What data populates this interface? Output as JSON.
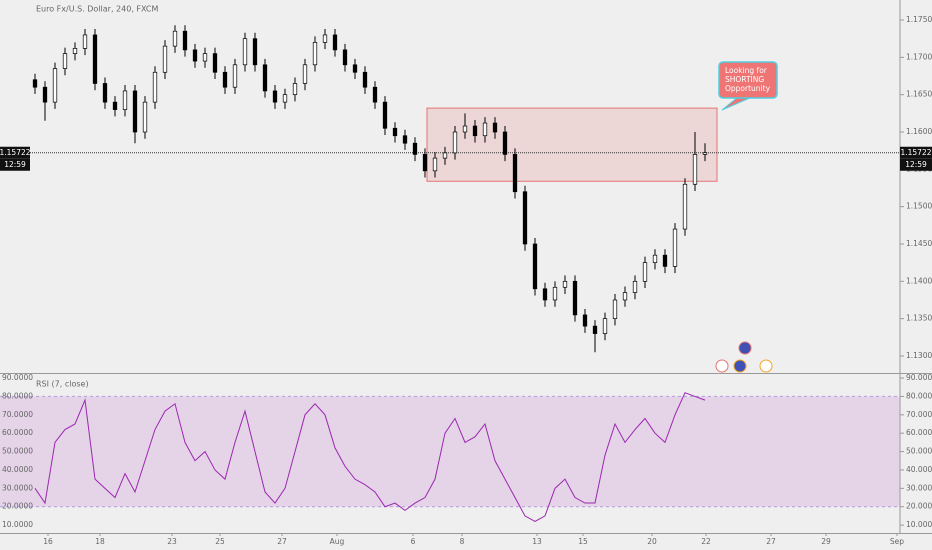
{
  "chart_data": {
    "type": "candlestick",
    "title": "Euro Fx/U.S. Dollar, 240, FXCM",
    "open": [
      1.167,
      1.166,
      1.164,
      1.1685,
      1.1705,
      1.1712,
      1.173,
      1.1665,
      1.164,
      1.163,
      1.1655,
      1.16,
      1.164,
      1.168,
      1.1715,
      1.1735,
      1.171,
      1.1695,
      1.1705,
      1.168,
      1.166,
      1.169,
      1.1725,
      1.169,
      1.1655,
      1.164,
      1.165,
      1.1665,
      1.169,
      1.172,
      1.173,
      1.171,
      1.169,
      1.168,
      1.166,
      1.164,
      1.1605,
      1.1595,
      1.1585,
      1.157,
      1.1548,
      1.1565,
      1.1572,
      1.16,
      1.1608,
      1.1595,
      1.1612,
      1.16,
      1.157,
      1.152,
      1.145,
      1.139,
      1.1375,
      1.1392,
      1.14,
      1.1355,
      1.134,
      1.133,
      1.135,
      1.1375,
      1.1385,
      1.14,
      1.1425,
      1.1435,
      1.142,
      1.147,
      1.153,
      1.157
    ],
    "high": [
      1.1678,
      1.1668,
      1.1693,
      1.1713,
      1.172,
      1.1738,
      1.1738,
      1.1673,
      1.1648,
      1.1663,
      1.1663,
      1.1648,
      1.1688,
      1.1723,
      1.1743,
      1.1743,
      1.1718,
      1.1713,
      1.1713,
      1.1688,
      1.1698,
      1.1733,
      1.1733,
      1.1698,
      1.1663,
      1.1658,
      1.1673,
      1.1698,
      1.1728,
      1.1738,
      1.1738,
      1.1718,
      1.1698,
      1.1688,
      1.1668,
      1.1648,
      1.1613,
      1.1603,
      1.1593,
      1.1578,
      1.1573,
      1.158,
      1.1608,
      1.1625,
      1.1616,
      1.162,
      1.162,
      1.1608,
      1.1578,
      1.1528,
      1.1458,
      1.1398,
      1.14,
      1.1408,
      1.1408,
      1.1363,
      1.1348,
      1.1358,
      1.1383,
      1.1393,
      1.1408,
      1.1433,
      1.1443,
      1.1443,
      1.1478,
      1.1538,
      1.16,
      1.1585
    ],
    "low": [
      1.1651,
      1.1615,
      1.1631,
      1.1676,
      1.1696,
      1.1703,
      1.1656,
      1.1631,
      1.1621,
      1.1621,
      1.1585,
      1.1591,
      1.1631,
      1.1671,
      1.1706,
      1.1701,
      1.1686,
      1.1686,
      1.1671,
      1.1651,
      1.1651,
      1.1681,
      1.1681,
      1.1646,
      1.1631,
      1.1631,
      1.1641,
      1.1656,
      1.1681,
      1.1711,
      1.1701,
      1.1681,
      1.1671,
      1.1651,
      1.1631,
      1.1596,
      1.1586,
      1.1576,
      1.1561,
      1.1539,
      1.1539,
      1.1556,
      1.1563,
      1.1591,
      1.1586,
      1.1586,
      1.1591,
      1.1561,
      1.1511,
      1.1441,
      1.1381,
      1.1366,
      1.1366,
      1.1383,
      1.1346,
      1.1331,
      1.1305,
      1.1321,
      1.1341,
      1.1366,
      1.1376,
      1.1391,
      1.1416,
      1.1411,
      1.1411,
      1.1461,
      1.1521,
      1.1561
    ],
    "close": [
      1.166,
      1.164,
      1.1685,
      1.1705,
      1.1712,
      1.173,
      1.1665,
      1.164,
      1.163,
      1.1655,
      1.16,
      1.164,
      1.168,
      1.1715,
      1.1735,
      1.171,
      1.1695,
      1.1705,
      1.168,
      1.166,
      1.169,
      1.1725,
      1.169,
      1.1655,
      1.164,
      1.165,
      1.1665,
      1.169,
      1.172,
      1.173,
      1.171,
      1.169,
      1.168,
      1.166,
      1.164,
      1.1605,
      1.1595,
      1.1585,
      1.157,
      1.1548,
      1.1565,
      1.1572,
      1.16,
      1.1608,
      1.1595,
      1.1612,
      1.16,
      1.157,
      1.152,
      1.145,
      1.139,
      1.1375,
      1.1392,
      1.14,
      1.1355,
      1.134,
      1.133,
      1.135,
      1.1375,
      1.1385,
      1.14,
      1.1425,
      1.1435,
      1.142,
      1.147,
      1.153,
      1.157,
      1.15722
    ],
    "up_color": "#ffffff",
    "down_color": "#000000",
    "xlim": [
      -3.5,
      86.5
    ],
    "xticks": [
      {
        "value": 1.3,
        "label": "16"
      },
      {
        "value": 6.5,
        "label": "18"
      },
      {
        "value": 13.7,
        "label": "23"
      },
      {
        "value": 18.5,
        "label": "25"
      },
      {
        "value": 24.7,
        "label": "27"
      },
      {
        "value": 30.2,
        "label": "Aug"
      },
      {
        "value": 37.8,
        "label": "6"
      },
      {
        "value": 42.7,
        "label": "8"
      },
      {
        "value": 50.2,
        "label": "13"
      },
      {
        "value": 54.8,
        "label": "15"
      },
      {
        "value": 61.7,
        "label": "20"
      },
      {
        "value": 67.1,
        "label": "22"
      },
      {
        "value": 73.6,
        "label": "27"
      },
      {
        "value": 79.1,
        "label": "29"
      },
      {
        "value": 86.2,
        "label": "Sep"
      }
    ],
    "ylim": [
      1.12772,
      1.17768
    ],
    "yticks": [
      {
        "value": 1.13,
        "label": "1.13000"
      },
      {
        "value": 1.135,
        "label": "1.13500"
      },
      {
        "value": 1.14,
        "label": "1.14000"
      },
      {
        "value": 1.145,
        "label": "1.14500"
      },
      {
        "value": 1.15,
        "label": "1.15000"
      },
      {
        "value": 1.155,
        "label": "1.15500"
      },
      {
        "value": 1.16,
        "label": "1.16000"
      },
      {
        "value": 1.165,
        "label": "1.16500"
      },
      {
        "value": 1.17,
        "label": "1.17000"
      },
      {
        "value": 1.175,
        "label": "1.17500"
      }
    ],
    "last_price": 1.15722,
    "countdown": "12:59",
    "zone": {
      "top": 1.1632,
      "bottom": 1.1534,
      "x_start": 39.2,
      "x_end": 68.2,
      "color": "#e57373"
    },
    "callout": [
      "Looking for",
      "SHORTING",
      "Opportunity"
    ],
    "rsi": {
      "title": "RSI (7, close)",
      "color": "#9c27b0",
      "values": [
        30,
        22,
        55,
        62,
        65,
        78,
        35,
        30,
        25,
        38,
        28,
        45,
        62,
        72,
        76,
        55,
        45,
        50,
        40,
        35,
        55,
        72,
        50,
        28,
        22,
        30,
        50,
        70,
        76,
        70,
        52,
        42,
        35,
        32,
        28,
        20,
        22,
        18,
        22,
        25,
        35,
        60,
        68,
        55,
        58,
        65,
        45,
        35,
        25,
        15,
        12,
        15,
        30,
        35,
        25,
        22,
        22,
        48,
        65,
        55,
        62,
        68,
        60,
        55,
        70,
        82,
        80,
        78
      ],
      "ylim": [
        5.7,
        92.2
      ],
      "yticks": [
        {
          "value": 10,
          "label": "10.0000"
        },
        {
          "value": 20,
          "label": "20.0000"
        },
        {
          "value": 30,
          "label": "30.0000"
        },
        {
          "value": 40,
          "label": "40.0000"
        },
        {
          "value": 50,
          "label": "50.0000"
        },
        {
          "value": 60,
          "label": "60.0000"
        },
        {
          "value": 70,
          "label": "70.0000"
        },
        {
          "value": 80,
          "label": "80.0000"
        },
        {
          "value": 90,
          "label": "90.0000"
        }
      ],
      "band": [
        20,
        80
      ]
    }
  }
}
